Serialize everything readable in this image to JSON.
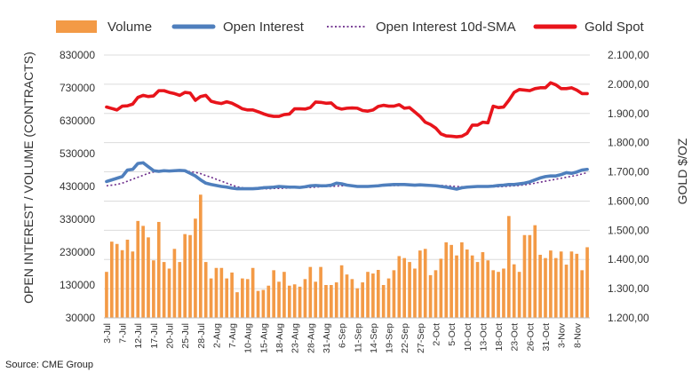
{
  "source": "Source: CME Group",
  "legend": {
    "volume": "Volume",
    "open_interest": "Open Interest",
    "sma": "Open Interest 10d-SMA",
    "gold": "Gold Spot"
  },
  "colors": {
    "volume": "#f39a46",
    "open_interest": "#4f7fbd",
    "sma": "#6b2a8a",
    "gold": "#e8141b"
  },
  "chart_data": {
    "type": "bar+line",
    "ylabel_left": "OPEN INTEREST / VOLUME (CONTRACTS)",
    "ylabel_right": "GOLD $/OZ",
    "ylim_left": [
      30000,
      830000
    ],
    "ylim_right": [
      1200,
      2100
    ],
    "yticks_left": [
      "30000",
      "130000",
      "230000",
      "330000",
      "430000",
      "530000",
      "630000",
      "730000",
      "830000"
    ],
    "yticks_right": [
      "1.200,00",
      "1.300,00",
      "1.400,00",
      "1.500,00",
      "1.600,00",
      "1.700,00",
      "1.800,00",
      "1.900,00",
      "2.000,00",
      "2.100,00"
    ],
    "x_tick_labels": [
      "3-Jul",
      "7-Jul",
      "12-Jul",
      "17-Jul",
      "20-Jul",
      "25-Jul",
      "28-Jul",
      "2-Aug",
      "7-Aug",
      "10-Aug",
      "15-Aug",
      "18-Aug",
      "23-Aug",
      "28-Aug",
      "31-Aug",
      "6-Sep",
      "11-Sep",
      "14-Sep",
      "19-Sep",
      "22-Sep",
      "27-Sep",
      "2-Oct",
      "5-Oct",
      "10-Oct",
      "13-Oct",
      "18-Oct",
      "23-Oct",
      "26-Oct",
      "31-Oct",
      "3-Nov",
      "8-Nov"
    ],
    "x_tick_every": 3,
    "n_points": 93,
    "series": [
      {
        "name": "Volume",
        "kind": "bar",
        "axis": "left",
        "values": [
          170000,
          262000,
          255000,
          236000,
          268000,
          232000,
          325000,
          310000,
          275000,
          205000,
          322000,
          200000,
          180000,
          240000,
          200000,
          285000,
          282000,
          332000,
          405000,
          200000,
          150000,
          182000,
          182000,
          150000,
          168000,
          108000,
          150000,
          148000,
          182000,
          112000,
          115000,
          128000,
          175000,
          140000,
          170000,
          128000,
          132000,
          125000,
          148000,
          185000,
          140000,
          185000,
          130000,
          130000,
          138000,
          190000,
          162000,
          148000,
          120000,
          138000,
          170000,
          165000,
          176000,
          130000,
          150000,
          175000,
          218000,
          212000,
          200000,
          180000,
          235000,
          240000,
          160000,
          175000,
          210000,
          260000,
          252000,
          220000,
          260000,
          238000,
          220000,
          200000,
          230000,
          205000,
          175000,
          170000,
          180000,
          340000,
          193000,
          170000,
          282000,
          282000,
          312000,
          222000,
          212000,
          235000,
          212000,
          232000,
          192000,
          232000,
          225000,
          175000,
          245000
        ]
      },
      {
        "name": "Open Interest",
        "kind": "line",
        "axis": "left",
        "values": [
          445000,
          450000,
          455000,
          460000,
          480000,
          482000,
          500000,
          502000,
          490000,
          478000,
          476000,
          478000,
          477000,
          478000,
          479000,
          478000,
          470000,
          462000,
          450000,
          440000,
          436000,
          433000,
          430000,
          428000,
          425000,
          423000,
          423000,
          423000,
          423000,
          424000,
          426000,
          427000,
          428000,
          430000,
          429000,
          428000,
          428000,
          427000,
          429000,
          432000,
          433000,
          432000,
          432000,
          434000,
          440000,
          438000,
          434000,
          432000,
          430000,
          430000,
          430000,
          431000,
          432000,
          434000,
          435000,
          436000,
          436000,
          436000,
          435000,
          434000,
          435000,
          434000,
          433000,
          432000,
          430000,
          428000,
          425000,
          422000,
          426000,
          428000,
          429000,
          430000,
          430000,
          430000,
          431000,
          433000,
          434000,
          436000,
          436000,
          438000,
          440000,
          444000,
          450000,
          456000,
          460000,
          462000,
          462000,
          466000,
          472000,
          470000,
          474000,
          480000,
          482000
        ]
      },
      {
        "name": "Open Interest 10d-SMA",
        "kind": "dotted-line",
        "axis": "left",
        "values": [
          432000,
          434000,
          436000,
          440000,
          446000,
          452000,
          458000,
          464000,
          470000,
          474000,
          476000,
          476000,
          476000,
          476000,
          477000,
          476000,
          475000,
          473000,
          469000,
          463000,
          458000,
          452000,
          446000,
          440000,
          434000,
          429000,
          426000,
          424000,
          423000,
          423000,
          423000,
          423000,
          424000,
          424000,
          425000,
          425000,
          426000,
          426000,
          427000,
          427000,
          428000,
          429000,
          430000,
          430000,
          431000,
          432000,
          432000,
          432000,
          432000,
          432000,
          432000,
          432000,
          432000,
          432000,
          432000,
          433000,
          433000,
          434000,
          434000,
          434000,
          434000,
          434000,
          434000,
          434000,
          433000,
          432000,
          431000,
          430000,
          429000,
          429000,
          428000,
          428000,
          428000,
          428000,
          429000,
          429000,
          430000,
          431000,
          432000,
          433000,
          435000,
          437000,
          440000,
          443000,
          446000,
          449000,
          452000,
          455000,
          458000,
          461000,
          464000,
          468000,
          472000
        ]
      },
      {
        "name": "Gold Spot",
        "kind": "line",
        "axis": "right",
        "values": [
          1922,
          1917,
          1912,
          1925,
          1926,
          1932,
          1955,
          1962,
          1958,
          1960,
          1978,
          1978,
          1972,
          1968,
          1962,
          1972,
          1970,
          1945,
          1958,
          1962,
          1942,
          1937,
          1934,
          1940,
          1935,
          1926,
          1916,
          1912,
          1912,
          1906,
          1899,
          1893,
          1890,
          1890,
          1896,
          1898,
          1916,
          1916,
          1915,
          1920,
          1939,
          1938,
          1935,
          1936,
          1920,
          1915,
          1918,
          1919,
          1918,
          1910,
          1908,
          1912,
          1924,
          1928,
          1925,
          1925,
          1930,
          1918,
          1920,
          1905,
          1890,
          1870,
          1862,
          1850,
          1830,
          1823,
          1822,
          1820,
          1822,
          1832,
          1860,
          1860,
          1870,
          1868,
          1925,
          1920,
          1922,
          1945,
          1972,
          1982,
          1980,
          1978,
          1985,
          1988,
          1988,
          2005,
          1998,
          1985,
          1985,
          1988,
          1980,
          1968,
          1968
        ]
      }
    ]
  }
}
